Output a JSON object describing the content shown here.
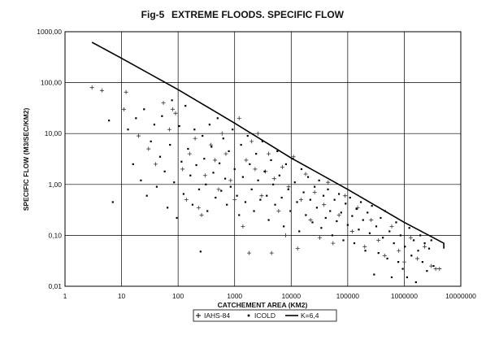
{
  "chart_data": {
    "type": "scatter",
    "figure_number": "Fig-5",
    "title": "EXTREME FLOODS. SPECIFIC FLOW",
    "xlabel": "CATCHEMENT AREA (KM2)",
    "ylabel": "SPECIFIC FLOW (M3/SEC/KM2)",
    "xscale": "log",
    "yscale": "log",
    "xlim": [
      1,
      10000000
    ],
    "ylim": [
      0.01,
      1000
    ],
    "grid": true,
    "legend_position": "bottom",
    "x_tick_labels": [
      "1",
      "10",
      "100",
      "1000",
      "10000",
      "100000",
      "1000000",
      "10000000"
    ],
    "y_tick_labels": [
      "0,01",
      "0,10",
      "1,00",
      "10,00",
      "100,00",
      "1000,00"
    ],
    "series": [
      {
        "name": "IAHS-84",
        "marker": "plus",
        "points": [
          [
            3,
            80
          ],
          [
            4.5,
            70
          ],
          [
            11,
            30
          ],
          [
            12,
            65
          ],
          [
            20,
            9
          ],
          [
            30,
            5
          ],
          [
            40,
            2.5
          ],
          [
            55,
            40
          ],
          [
            70,
            12
          ],
          [
            80,
            30
          ],
          [
            90,
            25
          ],
          [
            120,
            2
          ],
          [
            140,
            0.5
          ],
          [
            160,
            4
          ],
          [
            200,
            8
          ],
          [
            230,
            0.35
          ],
          [
            260,
            0.25
          ],
          [
            300,
            1.5
          ],
          [
            380,
            6
          ],
          [
            450,
            3
          ],
          [
            520,
            0.8
          ],
          [
            600,
            10
          ],
          [
            700,
            4
          ],
          [
            850,
            1.2
          ],
          [
            1000,
            0.5
          ],
          [
            1200,
            20
          ],
          [
            1400,
            0.15
          ],
          [
            1600,
            3
          ],
          [
            1800,
            0.045
          ],
          [
            2000,
            7
          ],
          [
            2300,
            2
          ],
          [
            2600,
            10
          ],
          [
            3000,
            0.6
          ],
          [
            3500,
            1.8
          ],
          [
            4000,
            4
          ],
          [
            4500,
            0.045
          ],
          [
            5000,
            1.3
          ],
          [
            6000,
            0.3
          ],
          [
            7000,
            2.2
          ],
          [
            8000,
            0.1
          ],
          [
            9000,
            0.9
          ],
          [
            11000,
            3.5
          ],
          [
            13000,
            0.055
          ],
          [
            15000,
            0.5
          ],
          [
            18000,
            1.6
          ],
          [
            22000,
            0.2
          ],
          [
            26000,
            0.7
          ],
          [
            32000,
            0.09
          ],
          [
            38000,
            0.4
          ],
          [
            45000,
            1.1
          ],
          [
            55000,
            0.07
          ],
          [
            70000,
            0.25
          ],
          [
            90000,
            0.6
          ],
          [
            120000,
            0.12
          ],
          [
            150000,
            0.35
          ],
          [
            200000,
            0.06
          ],
          [
            260000,
            0.2
          ],
          [
            350000,
            0.08
          ],
          [
            450000,
            0.04
          ],
          [
            600000,
            0.15
          ],
          [
            800000,
            0.05
          ],
          [
            1000000,
            0.03
          ],
          [
            1300000,
            0.09
          ],
          [
            1700000,
            0.035
          ],
          [
            2300000,
            0.06
          ],
          [
            3000000,
            0.025
          ],
          [
            3600000,
            0.022
          ],
          [
            4200000,
            0.022
          ]
        ]
      },
      {
        "name": "ICOLD",
        "marker": "dot",
        "points": [
          [
            6,
            18
          ],
          [
            7,
            0.45
          ],
          [
            13,
            12
          ],
          [
            16,
            2.5
          ],
          [
            18,
            20
          ],
          [
            22,
            1.2
          ],
          [
            25,
            30
          ],
          [
            28,
            0.6
          ],
          [
            33,
            7
          ],
          [
            38,
            15
          ],
          [
            42,
            0.9
          ],
          [
            48,
            3.5
          ],
          [
            52,
            22
          ],
          [
            58,
            1.8
          ],
          [
            65,
            0.35
          ],
          [
            72,
            6
          ],
          [
            78,
            45
          ],
          [
            85,
            1.1
          ],
          [
            95,
            0.22
          ],
          [
            105,
            14
          ],
          [
            115,
            2.8
          ],
          [
            125,
            0.65
          ],
          [
            135,
            35
          ],
          [
            150,
            5
          ],
          [
            165,
            1.5
          ],
          [
            180,
            0.4
          ],
          [
            195,
            12
          ],
          [
            210,
            2.4
          ],
          [
            235,
            0.8
          ],
          [
            250,
            0.048
          ],
          [
            270,
            9
          ],
          [
            290,
            3.2
          ],
          [
            310,
            1
          ],
          [
            330,
            0.3
          ],
          [
            360,
            15
          ],
          [
            390,
            5.5
          ],
          [
            420,
            1.7
          ],
          [
            460,
            0.55
          ],
          [
            500,
            20
          ],
          [
            540,
            2.6
          ],
          [
            580,
            0.75
          ],
          [
            630,
            8
          ],
          [
            680,
            1.3
          ],
          [
            730,
            0.4
          ],
          [
            790,
            4.5
          ],
          [
            850,
            0.9
          ],
          [
            920,
            12
          ],
          [
            1000,
            2
          ],
          [
            1100,
            0.6
          ],
          [
            1200,
            0.25
          ],
          [
            1300,
            6
          ],
          [
            1400,
            1.4
          ],
          [
            1550,
            0.45
          ],
          [
            1700,
            9
          ],
          [
            1850,
            2.5
          ],
          [
            2000,
            0.8
          ],
          [
            2200,
            0.3
          ],
          [
            2400,
            4
          ],
          [
            2600,
            1.2
          ],
          [
            2850,
            0.5
          ],
          [
            3100,
            7
          ],
          [
            3400,
            1.8
          ],
          [
            3700,
            0.6
          ],
          [
            4000,
            0.2
          ],
          [
            4400,
            3
          ],
          [
            4800,
            1
          ],
          [
            5200,
            0.4
          ],
          [
            5700,
            4.5
          ],
          [
            6200,
            1.5
          ],
          [
            6800,
            0.55
          ],
          [
            7400,
            0.15
          ],
          [
            8100,
            2.5
          ],
          [
            8900,
            0.8
          ],
          [
            9700,
            0.3
          ],
          [
            10600,
            3.2
          ],
          [
            11600,
            1.1
          ],
          [
            12700,
            0.45
          ],
          [
            13900,
            0.12
          ],
          [
            15200,
            2
          ],
          [
            16600,
            0.7
          ],
          [
            18200,
            0.25
          ],
          [
            19900,
            1.4
          ],
          [
            21800,
            0.5
          ],
          [
            23800,
            0.18
          ],
          [
            26000,
            0.9
          ],
          [
            28500,
            0.35
          ],
          [
            31200,
            1.2
          ],
          [
            34100,
            0.14
          ],
          [
            37300,
            0.6
          ],
          [
            40800,
            0.22
          ],
          [
            44700,
            0.8
          ],
          [
            48900,
            0.3
          ],
          [
            53500,
            0.1
          ],
          [
            58500,
            0.5
          ],
          [
            64000,
            0.19
          ],
          [
            70000,
            0.65
          ],
          [
            76600,
            0.28
          ],
          [
            83800,
            0.08
          ],
          [
            91700,
            0.42
          ],
          [
            100000,
            0.16
          ],
          [
            110000,
            0.55
          ],
          [
            120000,
            0.24
          ],
          [
            131000,
            0.07
          ],
          [
            143000,
            0.33
          ],
          [
            157000,
            0.13
          ],
          [
            171000,
            0.45
          ],
          [
            187000,
            0.2
          ],
          [
            205000,
            0.05
          ],
          [
            224000,
            0.28
          ],
          [
            245000,
            0.11
          ],
          [
            268000,
            0.38
          ],
          [
            293000,
            0.017
          ],
          [
            320000,
            0.15
          ],
          [
            350000,
            0.045
          ],
          [
            383000,
            0.22
          ],
          [
            419000,
            0.09
          ],
          [
            458000,
            0.3
          ],
          [
            501000,
            0.035
          ],
          [
            548000,
            0.12
          ],
          [
            600000,
            0.015
          ],
          [
            656000,
            0.07
          ],
          [
            718000,
            0.18
          ],
          [
            785000,
            0.03
          ],
          [
            859000,
            0.1
          ],
          [
            940000,
            0.022
          ],
          [
            1030000,
            0.06
          ],
          [
            1120000,
            0.015
          ],
          [
            1230000,
            0.14
          ],
          [
            1340000,
            0.04
          ],
          [
            1470000,
            0.08
          ],
          [
            1610000,
            0.012
          ],
          [
            1760000,
            0.05
          ],
          [
            1920000,
            0.1
          ],
          [
            2100000,
            0.03
          ],
          [
            2300000,
            0.07
          ],
          [
            2520000,
            0.02
          ],
          [
            2750000,
            0.055
          ],
          [
            3010000,
            0.08
          ],
          [
            3300000,
            0.025
          ]
        ]
      },
      {
        "name": "K=6,4",
        "marker": "line",
        "points": [
          [
            3,
            620
          ],
          [
            10,
            300
          ],
          [
            100,
            73
          ],
          [
            1000,
            16
          ],
          [
            10000,
            3.3
          ],
          [
            100000,
            0.8
          ],
          [
            1000000,
            0.18
          ],
          [
            5000000,
            0.07
          ],
          [
            5000000,
            0.055
          ]
        ]
      }
    ]
  }
}
